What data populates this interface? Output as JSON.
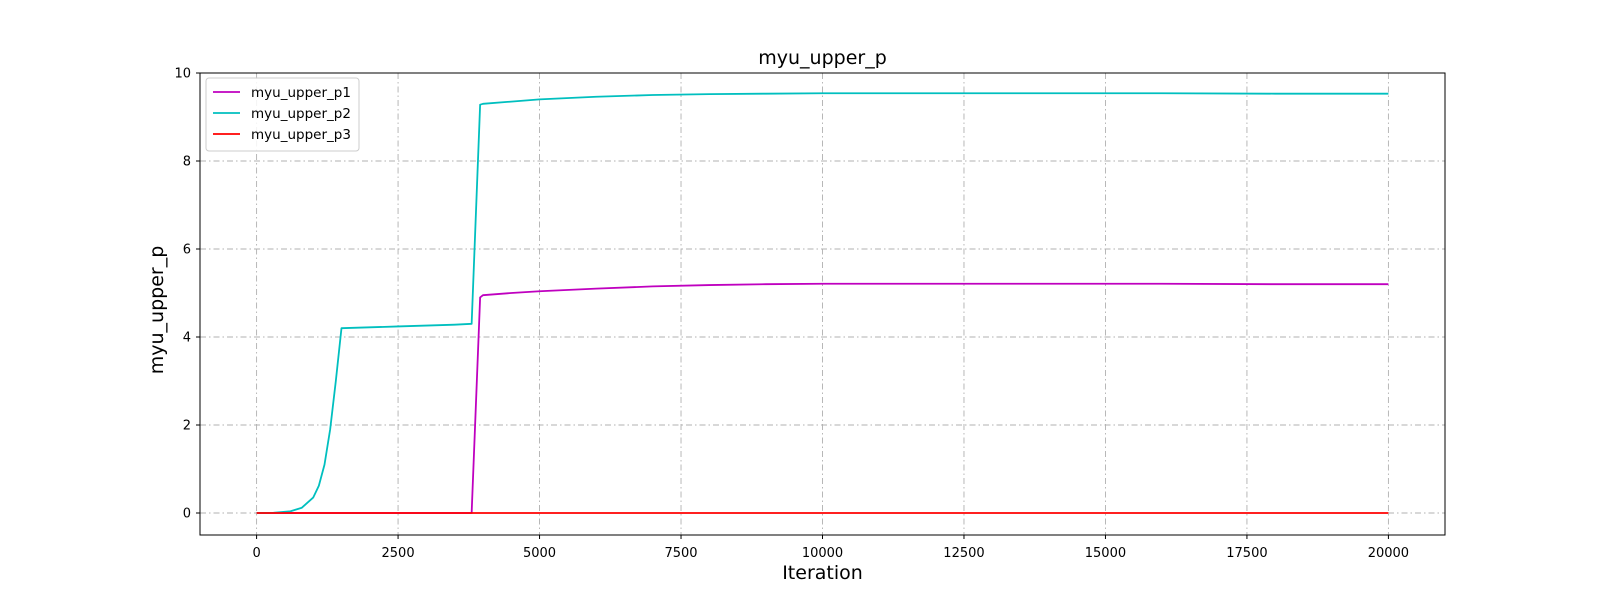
{
  "chart_data": {
    "type": "line",
    "title": "myu_upper_p",
    "xlabel": "Iteration",
    "ylabel": "myu_upper_p",
    "xlim": [
      -1000,
      21000
    ],
    "ylim": [
      -0.5,
      10
    ],
    "xticks": [
      0,
      2500,
      5000,
      7500,
      10000,
      12500,
      15000,
      17500,
      20000
    ],
    "yticks": [
      0,
      2,
      4,
      6,
      8,
      10
    ],
    "grid": true,
    "legend_position": "upper-left",
    "series": [
      {
        "name": "myu_upper_p1",
        "color": "#bf00bf",
        "x": [
          0,
          3799,
          3800,
          3950,
          4000,
          4500,
          5000,
          6000,
          7000,
          8000,
          9000,
          10000,
          12000,
          14000,
          16000,
          18000,
          20000
        ],
        "y": [
          0,
          0,
          0.0,
          4.9,
          4.95,
          5.0,
          5.04,
          5.1,
          5.15,
          5.18,
          5.2,
          5.21,
          5.21,
          5.21,
          5.21,
          5.2,
          5.2
        ]
      },
      {
        "name": "myu_upper_p2",
        "color": "#00bfbf",
        "x": [
          0,
          300,
          600,
          800,
          1000,
          1100,
          1200,
          1300,
          1400,
          1500,
          2000,
          2500,
          3000,
          3500,
          3800,
          3950,
          4000,
          4500,
          5000,
          6000,
          7000,
          8000,
          9000,
          10000,
          12000,
          14000,
          16000,
          18000,
          20000
        ],
        "y": [
          0,
          0.005,
          0.04,
          0.12,
          0.35,
          0.62,
          1.1,
          1.9,
          3.0,
          4.2,
          4.22,
          4.24,
          4.26,
          4.28,
          4.3,
          9.28,
          9.3,
          9.35,
          9.4,
          9.46,
          9.5,
          9.52,
          9.53,
          9.54,
          9.54,
          9.54,
          9.54,
          9.53,
          9.53
        ]
      },
      {
        "name": "myu_upper_p3",
        "color": "#ff0000",
        "x": [
          0,
          20000
        ],
        "y": [
          0,
          0
        ]
      }
    ]
  }
}
